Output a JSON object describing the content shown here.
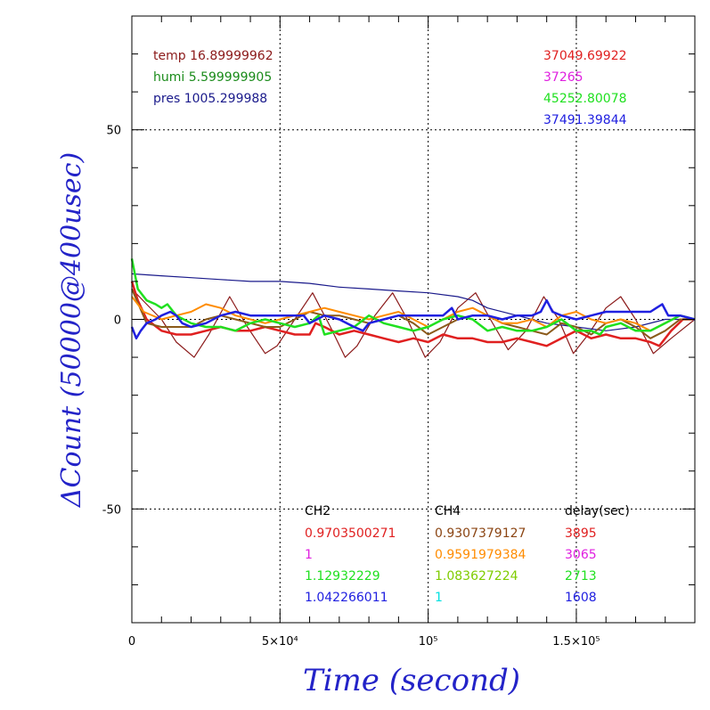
{
  "chart_data": {
    "type": "line",
    "xlabel": "Time (second)",
    "ylabel": "ΔCount (50000@400usec)",
    "xlim": [
      0,
      190000
    ],
    "ylim": [
      -80,
      80
    ],
    "xticks": [
      {
        "value": 0,
        "label": "0"
      },
      {
        "value": 50000,
        "label": "5×10⁴"
      },
      {
        "value": 100000,
        "label": "10⁵"
      },
      {
        "value": 150000,
        "label": "1.5×10⁵"
      }
    ],
    "yticks": [
      {
        "value": 50,
        "label": "50"
      },
      {
        "value": 0,
        "label": "0"
      },
      {
        "value": -50,
        "label": "-50"
      }
    ],
    "grid": true,
    "env_labels": [
      {
        "text": "temp 16.89999962",
        "color": "#8b1a1a"
      },
      {
        "text": "humi 5.599999905",
        "color": "#1a8b1a"
      },
      {
        "text": "pres 1005.299988",
        "color": "#1a1a8b"
      }
    ],
    "channel_means": [
      {
        "text": "37049.69922",
        "color": "#e02020"
      },
      {
        "text": "37265",
        "color": "#e020e0"
      },
      {
        "text": "45252.80078",
        "color": "#20e020"
      },
      {
        "text": "37491.39844",
        "color": "#2020e0"
      }
    ],
    "table": {
      "headers": [
        "CH2",
        "CH4",
        "delay(sec)"
      ],
      "rows": [
        [
          {
            "text": "0.9703500271",
            "color": "#e02020"
          },
          {
            "text": "0.9307379127",
            "color": "#8b4513"
          },
          {
            "text": "3895",
            "color": "#e02020"
          }
        ],
        [
          {
            "text": "1",
            "color": "#e020e0"
          },
          {
            "text": "0.9591979384",
            "color": "#ff8c00"
          },
          {
            "text": "3065",
            "color": "#e020e0"
          }
        ],
        [
          {
            "text": "1.12932229",
            "color": "#20e020"
          },
          {
            "text": "1.083627224",
            "color": "#7fcc00"
          },
          {
            "text": "2713",
            "color": "#20e020"
          }
        ],
        [
          {
            "text": "1.042266011",
            "color": "#2020e0"
          },
          {
            "text": "1",
            "color": "#00e0e0"
          },
          {
            "text": "1608",
            "color": "#2020e0"
          }
        ]
      ]
    },
    "series": [
      {
        "color": "#8b1a1a",
        "width": 1.2,
        "points": [
          [
            0,
            8
          ],
          [
            5000,
            4
          ],
          [
            10000,
            0
          ],
          [
            15000,
            -6
          ],
          [
            21000,
            -10
          ],
          [
            26000,
            -4
          ],
          [
            33000,
            6
          ],
          [
            39000,
            -2
          ],
          [
            45000,
            -9
          ],
          [
            49000,
            -7
          ],
          [
            55000,
            0
          ],
          [
            61000,
            7
          ],
          [
            67000,
            -2
          ],
          [
            72000,
            -10
          ],
          [
            76000,
            -7
          ],
          [
            82000,
            1
          ],
          [
            88000,
            7
          ],
          [
            93000,
            0
          ],
          [
            99000,
            -10
          ],
          [
            104000,
            -6
          ],
          [
            110000,
            3
          ],
          [
            116000,
            7
          ],
          [
            121000,
            0
          ],
          [
            127000,
            -8
          ],
          [
            133000,
            -3
          ],
          [
            139000,
            6
          ],
          [
            144000,
            0
          ],
          [
            149000,
            -9
          ],
          [
            154000,
            -4
          ],
          [
            160000,
            3
          ],
          [
            165000,
            6
          ],
          [
            170000,
            0
          ],
          [
            176000,
            -9
          ],
          [
            182000,
            -5
          ],
          [
            190000,
            0
          ]
        ]
      },
      {
        "color": "#1a1a8b",
        "width": 1.2,
        "points": [
          [
            0,
            12
          ],
          [
            10000,
            11.5
          ],
          [
            20000,
            11
          ],
          [
            30000,
            10.5
          ],
          [
            40000,
            10
          ],
          [
            50000,
            10
          ],
          [
            60000,
            9.5
          ],
          [
            70000,
            8.5
          ],
          [
            80000,
            8
          ],
          [
            90000,
            7.5
          ],
          [
            100000,
            7
          ],
          [
            110000,
            6
          ],
          [
            115000,
            5
          ],
          [
            120000,
            3
          ],
          [
            130000,
            1
          ],
          [
            140000,
            -1
          ],
          [
            150000,
            -2
          ],
          [
            160000,
            -3
          ],
          [
            170000,
            -2
          ],
          [
            180000,
            0
          ],
          [
            190000,
            0
          ]
        ]
      },
      {
        "color": "#e02020",
        "width": 2.5,
        "points": [
          [
            0,
            10
          ],
          [
            2000,
            5
          ],
          [
            5000,
            0
          ],
          [
            10000,
            -3
          ],
          [
            15000,
            -4
          ],
          [
            20000,
            -4
          ],
          [
            25000,
            -3
          ],
          [
            30000,
            -2
          ],
          [
            35000,
            -3
          ],
          [
            40000,
            -3
          ],
          [
            45000,
            -2
          ],
          [
            50000,
            -3
          ],
          [
            55000,
            -4
          ],
          [
            60000,
            -4
          ],
          [
            62000,
            -1
          ],
          [
            65000,
            -2
          ],
          [
            70000,
            -4
          ],
          [
            75000,
            -3
          ],
          [
            80000,
            -4
          ],
          [
            85000,
            -5
          ],
          [
            90000,
            -6
          ],
          [
            95000,
            -5
          ],
          [
            100000,
            -6
          ],
          [
            105000,
            -4
          ],
          [
            110000,
            -5
          ],
          [
            115000,
            -5
          ],
          [
            120000,
            -6
          ],
          [
            125000,
            -6
          ],
          [
            130000,
            -5
          ],
          [
            135000,
            -6
          ],
          [
            140000,
            -7
          ],
          [
            145000,
            -5
          ],
          [
            150000,
            -3
          ],
          [
            155000,
            -5
          ],
          [
            160000,
            -4
          ],
          [
            165000,
            -5
          ],
          [
            170000,
            -5
          ],
          [
            175000,
            -6
          ],
          [
            178000,
            -7
          ],
          [
            182000,
            -3
          ],
          [
            186000,
            0
          ],
          [
            190000,
            0
          ]
        ]
      },
      {
        "color": "#8b5a1a",
        "width": 2,
        "points": [
          [
            0,
            8
          ],
          [
            5000,
            -1
          ],
          [
            10000,
            -2
          ],
          [
            15000,
            -2
          ],
          [
            20000,
            -2
          ],
          [
            25000,
            0
          ],
          [
            30000,
            1
          ],
          [
            35000,
            0
          ],
          [
            40000,
            -1
          ],
          [
            45000,
            -2
          ],
          [
            50000,
            -2
          ],
          [
            55000,
            0
          ],
          [
            60000,
            2
          ],
          [
            65000,
            1
          ],
          [
            70000,
            1
          ],
          [
            75000,
            0
          ],
          [
            80000,
            -1
          ],
          [
            85000,
            0
          ],
          [
            90000,
            1
          ],
          [
            95000,
            -1
          ],
          [
            100000,
            -4
          ],
          [
            105000,
            -2
          ],
          [
            110000,
            0
          ],
          [
            115000,
            1
          ],
          [
            120000,
            1
          ],
          [
            125000,
            -1
          ],
          [
            130000,
            -2
          ],
          [
            135000,
            -3
          ],
          [
            140000,
            -4
          ],
          [
            145000,
            -1
          ],
          [
            150000,
            -2
          ],
          [
            155000,
            -4
          ],
          [
            160000,
            -1
          ],
          [
            165000,
            0
          ],
          [
            170000,
            -2
          ],
          [
            175000,
            -5
          ],
          [
            180000,
            -3
          ],
          [
            185000,
            0
          ],
          [
            190000,
            0
          ]
        ]
      },
      {
        "color": "#ff8c00",
        "width": 2,
        "points": [
          [
            0,
            6
          ],
          [
            4000,
            2
          ],
          [
            10000,
            0
          ],
          [
            15000,
            1
          ],
          [
            20000,
            2
          ],
          [
            25000,
            4
          ],
          [
            30000,
            3
          ],
          [
            35000,
            1
          ],
          [
            40000,
            0
          ],
          [
            45000,
            -1
          ],
          [
            50000,
            0
          ],
          [
            55000,
            1
          ],
          [
            60000,
            2
          ],
          [
            65000,
            3
          ],
          [
            70000,
            2
          ],
          [
            75000,
            1
          ],
          [
            80000,
            0
          ],
          [
            85000,
            1
          ],
          [
            90000,
            2
          ],
          [
            95000,
            0
          ],
          [
            100000,
            -2
          ],
          [
            105000,
            0
          ],
          [
            110000,
            2
          ],
          [
            115000,
            3
          ],
          [
            120000,
            1
          ],
          [
            125000,
            -1
          ],
          [
            130000,
            -1
          ],
          [
            135000,
            0
          ],
          [
            140000,
            -2
          ],
          [
            145000,
            1
          ],
          [
            150000,
            2
          ],
          [
            155000,
            0
          ],
          [
            160000,
            -1
          ],
          [
            165000,
            0
          ],
          [
            170000,
            -1
          ],
          [
            175000,
            -3
          ],
          [
            180000,
            -1
          ],
          [
            185000,
            1
          ],
          [
            190000,
            0
          ]
        ]
      },
      {
        "color": "#20e020",
        "width": 2.5,
        "points": [
          [
            0,
            16
          ],
          [
            2000,
            8
          ],
          [
            5000,
            5
          ],
          [
            8000,
            4
          ],
          [
            10000,
            3
          ],
          [
            12000,
            4
          ],
          [
            15000,
            1
          ],
          [
            20000,
            -1
          ],
          [
            25000,
            -2
          ],
          [
            30000,
            -2
          ],
          [
            35000,
            -3
          ],
          [
            40000,
            -1
          ],
          [
            45000,
            0
          ],
          [
            50000,
            -1
          ],
          [
            55000,
            -2
          ],
          [
            60000,
            -1
          ],
          [
            63000,
            1
          ],
          [
            65000,
            -4
          ],
          [
            70000,
            -3
          ],
          [
            75000,
            -2
          ],
          [
            80000,
            1
          ],
          [
            85000,
            -1
          ],
          [
            90000,
            -2
          ],
          [
            95000,
            -3
          ],
          [
            100000,
            -2
          ],
          [
            105000,
            0
          ],
          [
            110000,
            1
          ],
          [
            115000,
            0
          ],
          [
            120000,
            -3
          ],
          [
            125000,
            -2
          ],
          [
            130000,
            -3
          ],
          [
            135000,
            -3
          ],
          [
            140000,
            -2
          ],
          [
            145000,
            0
          ],
          [
            150000,
            -3
          ],
          [
            155000,
            -3
          ],
          [
            158000,
            -4
          ],
          [
            160000,
            -2
          ],
          [
            165000,
            -1
          ],
          [
            170000,
            -3
          ],
          [
            175000,
            -3
          ],
          [
            180000,
            -1
          ],
          [
            185000,
            1
          ],
          [
            190000,
            0
          ]
        ]
      },
      {
        "color": "#2020e0",
        "width": 2.5,
        "points": [
          [
            0,
            -2
          ],
          [
            1500,
            -5
          ],
          [
            3000,
            -3
          ],
          [
            5000,
            -1
          ],
          [
            8000,
            0
          ],
          [
            10000,
            1
          ],
          [
            13000,
            2
          ],
          [
            15000,
            1
          ],
          [
            17000,
            -1
          ],
          [
            20000,
            -2
          ],
          [
            25000,
            -1
          ],
          [
            30000,
            1
          ],
          [
            35000,
            2
          ],
          [
            40000,
            1
          ],
          [
            45000,
            1
          ],
          [
            50000,
            1
          ],
          [
            55000,
            1
          ],
          [
            58000,
            1
          ],
          [
            60000,
            -1
          ],
          [
            65000,
            1
          ],
          [
            70000,
            0
          ],
          [
            75000,
            -2
          ],
          [
            78000,
            -3
          ],
          [
            80000,
            -1
          ],
          [
            85000,
            0
          ],
          [
            90000,
            1
          ],
          [
            95000,
            1
          ],
          [
            100000,
            1
          ],
          [
            105000,
            1
          ],
          [
            108000,
            3
          ],
          [
            110000,
            0
          ],
          [
            115000,
            1
          ],
          [
            120000,
            1
          ],
          [
            125000,
            0
          ],
          [
            130000,
            1
          ],
          [
            135000,
            1
          ],
          [
            138000,
            2
          ],
          [
            140000,
            5
          ],
          [
            142000,
            2
          ],
          [
            145000,
            1
          ],
          [
            150000,
            0
          ],
          [
            155000,
            1
          ],
          [
            160000,
            2
          ],
          [
            165000,
            2
          ],
          [
            170000,
            2
          ],
          [
            175000,
            2
          ],
          [
            177000,
            3
          ],
          [
            179000,
            4
          ],
          [
            181000,
            1
          ],
          [
            185000,
            1
          ],
          [
            190000,
            0
          ]
        ]
      }
    ]
  }
}
